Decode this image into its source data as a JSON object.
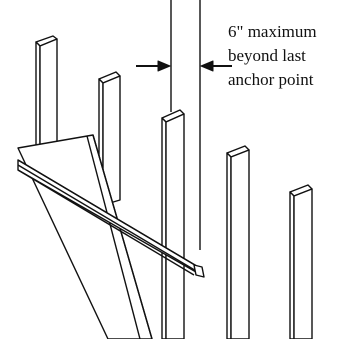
{
  "annotation": {
    "lines": [
      "6\" maximum",
      "beyond last",
      "anchor point"
    ]
  },
  "colors": {
    "stroke": "#111111",
    "background": "#ffffff"
  }
}
